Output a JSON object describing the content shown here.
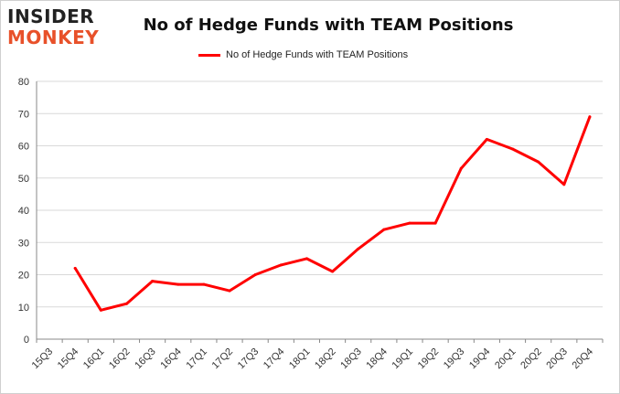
{
  "logo": {
    "line1": "INSIDER",
    "line2": "MONKEY",
    "color_dark": "#222222",
    "color_accent": "#e8512a"
  },
  "chart_data": {
    "type": "line",
    "title": "No of Hedge Funds with TEAM Positions",
    "xlabel": "",
    "ylabel": "",
    "ylim": [
      0,
      80
    ],
    "yticks": [
      0,
      10,
      20,
      30,
      40,
      50,
      60,
      70,
      80
    ],
    "grid": true,
    "legend_position": "top-center",
    "categories": [
      "15Q3",
      "15Q4",
      "16Q1",
      "16Q2",
      "16Q3",
      "16Q4",
      "17Q1",
      "17Q2",
      "17Q3",
      "17Q4",
      "18Q1",
      "18Q2",
      "18Q3",
      "18Q4",
      "19Q1",
      "19Q2",
      "19Q3",
      "19Q4",
      "20Q1",
      "20Q2",
      "20Q3",
      "20Q4"
    ],
    "series": [
      {
        "name": "No of Hedge Funds with TEAM Positions",
        "color": "#ff0000",
        "values": [
          null,
          22,
          9,
          11,
          18,
          17,
          17,
          15,
          20,
          23,
          25,
          21,
          28,
          34,
          36,
          36,
          53,
          62,
          59,
          55,
          48,
          69
        ]
      }
    ]
  }
}
